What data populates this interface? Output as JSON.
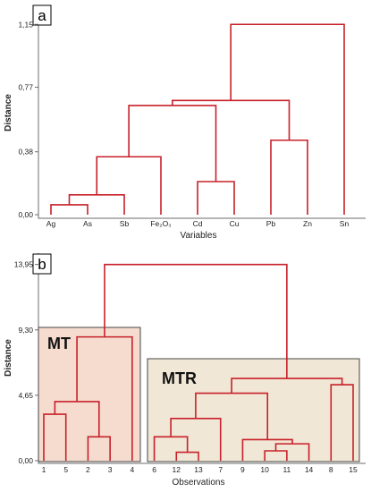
{
  "chart_data": [
    {
      "type": "dendrogram",
      "panel_label": "a",
      "xlabel": "Variables",
      "ylabel": "Distance",
      "ylim": [
        0,
        1.2
      ],
      "yticks": [
        {
          "value": 0.0,
          "label": "0,00"
        },
        {
          "value": 0.38,
          "label": "0,38"
        },
        {
          "value": 0.77,
          "label": "0,77"
        },
        {
          "value": 1.15,
          "label": "1,15"
        }
      ],
      "leaves": [
        "Ag",
        "As",
        "Sb",
        "Fe₂O₃",
        "Cd",
        "Cu",
        "Pb",
        "Zn",
        "Sn"
      ],
      "merges": [
        {
          "a": "Ag",
          "b": "As",
          "height": 0.06
        },
        {
          "a": "Ag,As",
          "b": "Sb",
          "height": 0.12
        },
        {
          "a": "Cd",
          "b": "Cu",
          "height": 0.2
        },
        {
          "a": "Ag,As,Sb",
          "b": "Fe₂O₃",
          "height": 0.35
        },
        {
          "a": "Pb",
          "b": "Zn",
          "height": 0.45
        },
        {
          "a": "Ag,As,Sb,Fe₂O₃",
          "b": "Cd,Cu",
          "height": 0.66
        },
        {
          "a": "Ag..Cu",
          "b": "Pb,Zn",
          "height": 0.69
        },
        {
          "a": "Ag..Zn",
          "b": "Sn",
          "height": 1.15
        }
      ]
    },
    {
      "type": "dendrogram",
      "panel_label": "b",
      "xlabel": "Observations",
      "ylabel": "Distance",
      "ylim": [
        0,
        14.5
      ],
      "yticks": [
        {
          "value": 0.0,
          "label": "0,00"
        },
        {
          "value": 4.65,
          "label": "4,65"
        },
        {
          "value": 9.3,
          "label": "9,30"
        },
        {
          "value": 13.95,
          "label": "13,95"
        }
      ],
      "leaves": [
        "1",
        "5",
        "2",
        "3",
        "4",
        "6",
        "12",
        "13",
        "7",
        "9",
        "10",
        "11",
        "14",
        "8",
        "15"
      ],
      "groups": [
        {
          "name": "MT",
          "members": [
            "1",
            "5",
            "2",
            "3",
            "4"
          ]
        },
        {
          "name": "MTR",
          "members": [
            "6",
            "12",
            "13",
            "7",
            "9",
            "10",
            "11",
            "14",
            "8",
            "15"
          ]
        }
      ],
      "merges": [
        {
          "a": "12",
          "b": "13",
          "height": 0.6
        },
        {
          "a": "10",
          "b": "11",
          "height": 0.7
        },
        {
          "a": "10,11",
          "b": "14",
          "height": 1.2
        },
        {
          "a": "6",
          "b": "12,13",
          "height": 1.7
        },
        {
          "a": "9",
          "b": "10,11,14",
          "height": 1.5
        },
        {
          "a": "2",
          "b": "3",
          "height": 1.7
        },
        {
          "a": "1",
          "b": "5",
          "height": 3.3
        },
        {
          "a": "6,12,13",
          "b": "7",
          "height": 3.0
        },
        {
          "a": "1,5",
          "b": "2,3",
          "height": 4.2
        },
        {
          "a": "6,12,13,7",
          "b": "9,10,11,14",
          "height": 4.8
        },
        {
          "a": "8",
          "b": "15",
          "height": 5.4
        },
        {
          "a": "6..14",
          "b": "8,15",
          "height": 5.85
        },
        {
          "a": "1,5,2,3",
          "b": "4",
          "height": 8.8
        },
        {
          "a": "MT",
          "b": "MTR",
          "height": 13.95
        }
      ]
    }
  ]
}
